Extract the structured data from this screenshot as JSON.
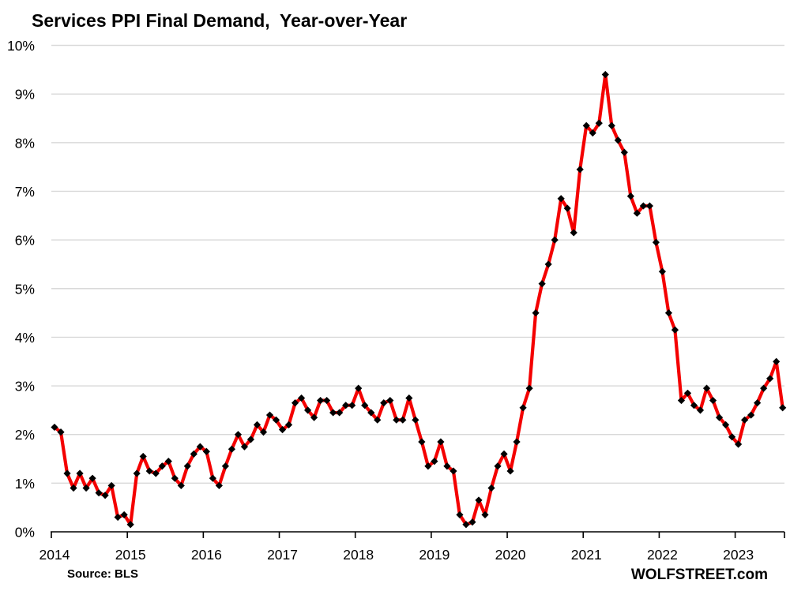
{
  "page": {
    "title": "Services PPI Final Demand,  Year-over-Year",
    "source_note": "Source: BLS",
    "watermark": "WOLFSTREET.com"
  },
  "colors": {
    "line": "#f40000",
    "marker": "#000000",
    "grid": "#d9d9d9",
    "axis": "#000000",
    "text": "#000000",
    "background": "#ffffff"
  },
  "chart_data": {
    "type": "line",
    "title": "Services PPI Final Demand,  Year-over-Year",
    "xlabel": "",
    "ylabel": "",
    "y_unit": "%",
    "ylim": [
      0,
      10
    ],
    "y_tick_step": 1,
    "y_tick_labels": [
      "0%",
      "1%",
      "2%",
      "3%",
      "4%",
      "5%",
      "6%",
      "7%",
      "8%",
      "9%",
      "10%"
    ],
    "x_tick_labels": [
      "2014",
      "2015",
      "2016",
      "2017",
      "2018",
      "2019",
      "2020",
      "2021",
      "2022",
      "2023"
    ],
    "x_start_month": "2014-01",
    "x_end_month": "2023-08",
    "grid": "horizontal-only",
    "legend": "none",
    "series": [
      {
        "name": "Services PPI Final Demand, year-over-year %",
        "color": "#f40000",
        "marker": "black-diamond",
        "frequency": "monthly",
        "values_pct": [
          2.15,
          2.05,
          1.2,
          0.9,
          1.2,
          0.9,
          1.1,
          0.8,
          0.75,
          0.95,
          0.3,
          0.35,
          0.15,
          1.2,
          1.55,
          1.25,
          1.2,
          1.35,
          1.45,
          1.1,
          0.95,
          1.35,
          1.6,
          1.75,
          1.65,
          1.1,
          0.95,
          1.35,
          1.7,
          2.0,
          1.75,
          1.9,
          2.2,
          2.05,
          2.4,
          2.3,
          2.1,
          2.2,
          2.65,
          2.75,
          2.5,
          2.35,
          2.7,
          2.7,
          2.45,
          2.45,
          2.6,
          2.6,
          2.95,
          2.6,
          2.45,
          2.3,
          2.65,
          2.7,
          2.3,
          2.3,
          2.75,
          2.3,
          1.85,
          1.35,
          1.45,
          1.85,
          1.35,
          1.25,
          0.35,
          0.15,
          0.2,
          0.65,
          0.35,
          0.9,
          1.35,
          1.6,
          1.25,
          1.85,
          2.55,
          2.95,
          4.5,
          5.1,
          5.5,
          6.0,
          6.85,
          6.65,
          6.15,
          7.45,
          8.35,
          8.2,
          8.4,
          9.4,
          8.35,
          8.05,
          7.8,
          6.9,
          6.55,
          6.7,
          6.7,
          5.95,
          5.35,
          4.5,
          4.15,
          2.7,
          2.85,
          2.6,
          2.5,
          2.95,
          2.7,
          2.35,
          2.2,
          1.95,
          1.8,
          2.3,
          2.4,
          2.65,
          2.95,
          3.15,
          3.5,
          2.55
        ]
      }
    ]
  }
}
